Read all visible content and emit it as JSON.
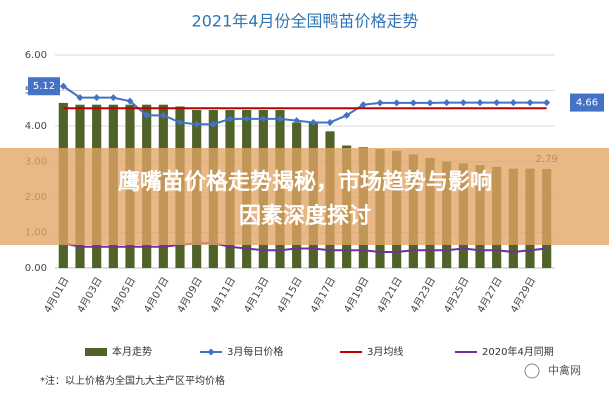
{
  "chart_data": {
    "type": "combo",
    "title": "2021年4月份全国鸭苗价格走势",
    "categories": [
      "4月01日",
      null,
      "4月03日",
      null,
      "4月05日",
      null,
      "4月07日",
      null,
      "4月09日",
      null,
      "4月11日",
      null,
      "4月13日",
      null,
      "4月15日",
      null,
      "4月17日",
      null,
      "4月19日",
      null,
      "4月21日",
      null,
      "4月23日",
      null,
      "4月25日",
      null,
      "4月27日",
      null,
      "4月29日",
      null
    ],
    "series": [
      {
        "name": "本月走势",
        "type": "bar",
        "color": "#4f6228",
        "values": [
          4.65,
          4.6,
          4.6,
          4.6,
          4.6,
          4.6,
          4.6,
          4.55,
          4.45,
          4.45,
          4.45,
          4.45,
          4.45,
          4.45,
          4.1,
          4.1,
          3.85,
          3.45,
          3.4,
          3.35,
          3.3,
          3.2,
          3.1,
          3.0,
          2.95,
          2.9,
          2.85,
          2.8,
          2.8,
          2.79
        ]
      },
      {
        "name": "3月每日价格",
        "type": "line",
        "marker": true,
        "color": "#4472c4",
        "values": [
          5.12,
          4.8,
          4.8,
          4.8,
          4.7,
          4.3,
          4.3,
          4.1,
          4.05,
          4.05,
          4.2,
          4.2,
          4.2,
          4.2,
          4.15,
          4.1,
          4.1,
          4.3,
          4.6,
          4.65,
          4.65,
          4.65,
          4.65,
          4.66,
          4.66,
          4.66,
          4.66,
          4.66,
          4.66,
          4.66
        ]
      },
      {
        "name": "3月均线",
        "type": "line",
        "marker": false,
        "color": "#c00000",
        "values": [
          4.5,
          4.5,
          4.5,
          4.5,
          4.5,
          4.5,
          4.5,
          4.5,
          4.5,
          4.5,
          4.5,
          4.5,
          4.5,
          4.5,
          4.5,
          4.5,
          4.5,
          4.5,
          4.5,
          4.5,
          4.5,
          4.5,
          4.5,
          4.5,
          4.5,
          4.5,
          4.5,
          4.5,
          4.5,
          4.5
        ]
      },
      {
        "name": "2020年4月同期",
        "type": "line",
        "marker": false,
        "color": "#7030a0",
        "values": [
          0.7,
          0.6,
          0.6,
          0.6,
          0.6,
          0.6,
          0.6,
          0.65,
          0.7,
          0.7,
          0.6,
          0.55,
          0.5,
          0.5,
          0.55,
          0.55,
          0.5,
          0.5,
          0.5,
          0.45,
          0.45,
          0.5,
          0.5,
          0.5,
          0.55,
          0.5,
          0.5,
          0.45,
          0.5,
          0.55
        ]
      }
    ],
    "ylim": [
      0,
      6
    ],
    "yticks": [
      {
        "value": 0,
        "label": "0.00"
      },
      {
        "value": 1,
        "label": "1.00"
      },
      {
        "value": 2,
        "label": "2.00"
      },
      {
        "value": 3,
        "label": "3.00"
      },
      {
        "value": 4,
        "label": "4.00"
      },
      {
        "value": 5,
        "label": "5.00"
      },
      {
        "value": 6,
        "label": "6.00"
      }
    ],
    "grid": true,
    "legend": "bottom",
    "note": "*注：以上价格为全国九大主产区平均价格"
  },
  "overlay": {
    "headline": [
      "鹰嘴苗价格走势揭秘，市场趋势与影响",
      "因素深度探讨"
    ],
    "watermark": "中禽网"
  }
}
